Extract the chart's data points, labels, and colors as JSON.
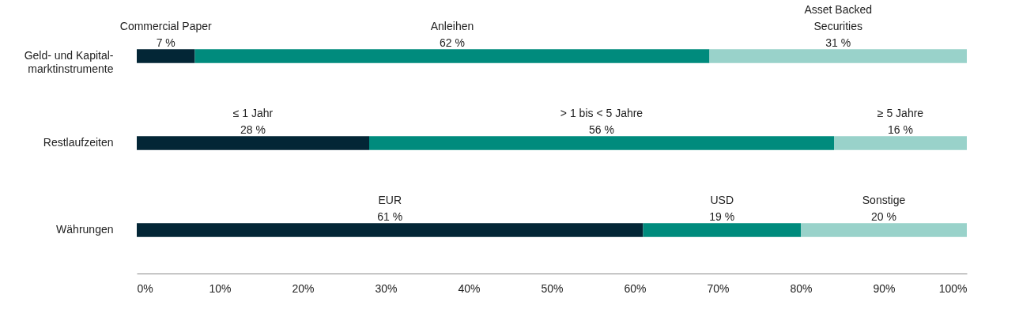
{
  "chart_data": {
    "type": "bar",
    "orientation": "horizontal",
    "stacked": true,
    "categories": [
      "Geld- und Kapital-\nmarktinstrumente",
      "Restlaufzeiten",
      "Währungen"
    ],
    "series": [
      {
        "color": "#032636",
        "values": [
          7,
          28,
          61
        ],
        "value_labels": [
          "7 %",
          "28 %",
          "61 %"
        ]
      },
      {
        "color": "#008b7d",
        "values": [
          62,
          56,
          19
        ],
        "value_labels": [
          "62 %",
          "56 %",
          "19 %"
        ]
      },
      {
        "color": "#99d2ca",
        "values": [
          31,
          16,
          20
        ],
        "value_labels": [
          "31 %",
          "16 %",
          "20 %"
        ]
      }
    ],
    "annotations": [
      "Commercial Paper",
      "Anleihen",
      "Asset Backed\nSecurities",
      "≤ 1 Jahr",
      "> 1 bis < 5 Jahre",
      "≥ 5 Jahre",
      "EUR",
      "USD",
      "Sonstige"
    ],
    "xlim": [
      0,
      100
    ],
    "xticks": [
      {
        "value": 0,
        "label": "0%"
      },
      {
        "value": 10,
        "label": "10%"
      },
      {
        "value": 20,
        "label": "20%"
      },
      {
        "value": 30,
        "label": "30%"
      },
      {
        "value": 40,
        "label": "40%"
      },
      {
        "value": 50,
        "label": "50%"
      },
      {
        "value": 60,
        "label": "60%"
      },
      {
        "value": 70,
        "label": "70%"
      },
      {
        "value": 80,
        "label": "80%"
      },
      {
        "value": 90,
        "label": "90%"
      },
      {
        "value": 100,
        "label": "100%"
      }
    ],
    "grid": false,
    "legend": false
  }
}
